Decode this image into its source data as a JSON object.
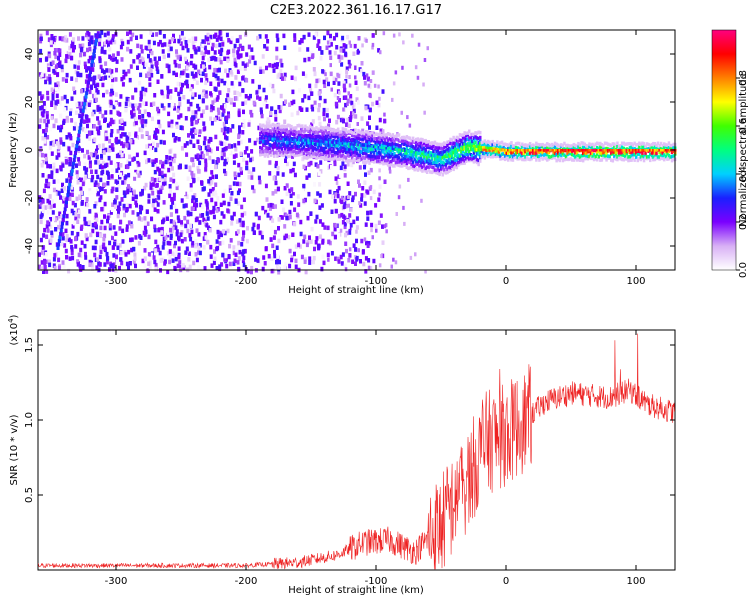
{
  "title": "C2E3.2022.361.16.17.G17",
  "colorbar": {
    "label": "Normalized spectral amplitude",
    "range": [
      0.0,
      1.0
    ],
    "tick_labels": [
      "0.0",
      "0.2",
      "0.4",
      "0.6",
      "0.8"
    ],
    "tick_values": [
      0.0,
      0.2,
      0.4,
      0.6,
      0.8
    ],
    "colormap": [
      "#ffffff",
      "#d8b0f5",
      "#7a00ff",
      "#1a20ff",
      "#00d0ff",
      "#00ff80",
      "#40ff00",
      "#ffff00",
      "#ff8000",
      "#ff0000",
      "#ff007f"
    ]
  },
  "chart_data": [
    {
      "type": "heatmap",
      "xlabel": "Height of straight line (km)",
      "ylabel": "Frequency (Hz)",
      "xlim": [
        -360,
        130
      ],
      "ylim": [
        -50,
        50
      ],
      "x_ticks": [
        -300,
        -200,
        -100,
        0,
        100
      ],
      "x_tick_labels": [
        "-300",
        "-200",
        "-100",
        "0",
        "100"
      ],
      "y_ticks": [
        -40,
        -20,
        0,
        20,
        40
      ],
      "y_tick_labels": [
        "-40",
        "-20",
        "0",
        "20",
        "40"
      ],
      "colorbar_label": "Normalized spectral amplitude",
      "features": {
        "noise_region_x": [
          -360,
          -130
        ],
        "noise_level": 0.12,
        "trace_start_x": -190,
        "trace_points": [
          {
            "x": -190,
            "f": 5,
            "amp": 0.25
          },
          {
            "x": -150,
            "f": 4,
            "amp": 0.3
          },
          {
            "x": -110,
            "f": 2,
            "amp": 0.35
          },
          {
            "x": -80,
            "f": 0,
            "amp": 0.4
          },
          {
            "x": -50,
            "f": -3,
            "amp": 0.45
          },
          {
            "x": -30,
            "f": 2,
            "amp": 0.55
          },
          {
            "x": 0,
            "f": 0,
            "amp": 0.75
          },
          {
            "x": 60,
            "f": 0,
            "amp": 0.85
          },
          {
            "x": 130,
            "f": 0,
            "amp": 0.8
          }
        ],
        "diagonal_streak": {
          "x": [
            -345,
            -315
          ],
          "f": [
            -40,
            48
          ]
        }
      }
    },
    {
      "type": "line",
      "xlabel": "Height of straight line (km)",
      "ylabel": "SNR (10 * v/v)",
      "y_multiplier": "(x10",
      "y_multiplier_exp": "4",
      "y_multiplier_close": ")",
      "xlim": [
        -360,
        130
      ],
      "ylim": [
        0,
        1.6
      ],
      "x_ticks": [
        -300,
        -200,
        -100,
        0,
        100
      ],
      "x_tick_labels": [
        "-300",
        "-200",
        "-100",
        "0",
        "100"
      ],
      "y_ticks": [
        0.5,
        1.0,
        1.5
      ],
      "y_tick_labels": [
        "0.5",
        "1.0",
        "1.5"
      ],
      "color": "#ee2222",
      "series_envelope": [
        {
          "x": -360,
          "y": 0.03
        },
        {
          "x": -200,
          "y": 0.03
        },
        {
          "x": -160,
          "y": 0.05
        },
        {
          "x": -130,
          "y": 0.1
        },
        {
          "x": -110,
          "y": 0.18
        },
        {
          "x": -90,
          "y": 0.2
        },
        {
          "x": -70,
          "y": 0.12
        },
        {
          "x": -50,
          "y": 0.3
        },
        {
          "x": -30,
          "y": 0.6
        },
        {
          "x": -15,
          "y": 0.85
        },
        {
          "x": 0,
          "y": 0.9
        },
        {
          "x": 15,
          "y": 1.0
        },
        {
          "x": 30,
          "y": 1.12
        },
        {
          "x": 50,
          "y": 1.18
        },
        {
          "x": 80,
          "y": 1.15
        },
        {
          "x": 95,
          "y": 1.2
        },
        {
          "x": 110,
          "y": 1.1
        },
        {
          "x": 130,
          "y": 1.05
        }
      ]
    }
  ]
}
